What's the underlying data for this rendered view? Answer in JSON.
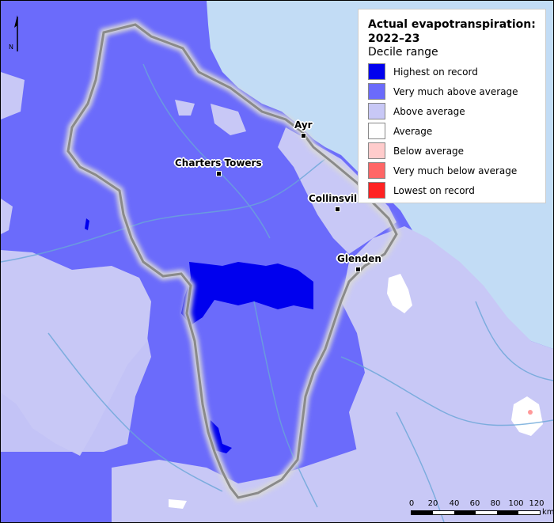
{
  "legend": {
    "title": "Actual evapotranspiration: 2022–23",
    "subtitle": "Decile range",
    "items": [
      {
        "label": "Highest on record",
        "color": "#0000ee"
      },
      {
        "label": "Very much above average",
        "color": "#6b6bfb"
      },
      {
        "label": "Above average",
        "color": "#c8c8f6"
      },
      {
        "label": "Average",
        "color": "#ffffff"
      },
      {
        "label": "Below average",
        "color": "#ffcccc"
      },
      {
        "label": "Very much below average",
        "color": "#ff6666"
      },
      {
        "label": "Lowest on record",
        "color": "#ff2222"
      }
    ]
  },
  "towns": [
    {
      "name": "Ayr"
    },
    {
      "name": "Charters Towers"
    },
    {
      "name": "Collinsvil"
    },
    {
      "name": "Glenden"
    }
  ],
  "north_arrow": {
    "label": "N"
  },
  "scale": {
    "ticks": [
      "0",
      "20",
      "40",
      "60",
      "80",
      "100",
      "120"
    ],
    "unit": "km"
  },
  "colors": {
    "sea": "#c2dcf5",
    "highest": "#0000ee",
    "very_much_above": "#6b6bfb",
    "above": "#c8c8f6",
    "average": "#ffffff",
    "river": "#6aa6d8",
    "boundary": "#8a8a8a"
  }
}
